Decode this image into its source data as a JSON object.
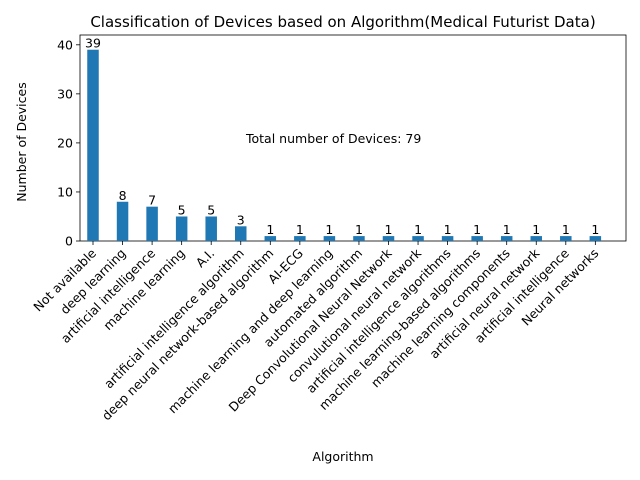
{
  "chart_data": {
    "type": "bar",
    "title": "Classification of Devices based on Algorithm(Medical Futurist Data)",
    "xlabel": "Algorithm",
    "ylabel": "Number of Devices",
    "categories": [
      "Not available",
      "deep learning",
      "artificial intelligence",
      "machine learning",
      "A.I.",
      "artificial intelligence algorithm",
      "deep neural network-based algorithm",
      "AI-ECG",
      "machine learning and deep learning",
      "automated algorithm",
      "Deep Convolutional Neural Network",
      "convulutional neural network",
      "artificial intelligence algorithms",
      "machine learning-based algorithms",
      "machine learning components",
      "artificial neural network",
      "artificial intelligence ",
      "Neural networks"
    ],
    "values": [
      39,
      8,
      7,
      5,
      5,
      3,
      1,
      1,
      1,
      1,
      1,
      1,
      1,
      1,
      1,
      1,
      1,
      1
    ],
    "ylim": [
      0,
      42
    ],
    "yticks": [
      0,
      10,
      20,
      30,
      40
    ],
    "annotation": "Total number of Devices: 79",
    "bar_color": "#1f77b4",
    "grid": false
  }
}
